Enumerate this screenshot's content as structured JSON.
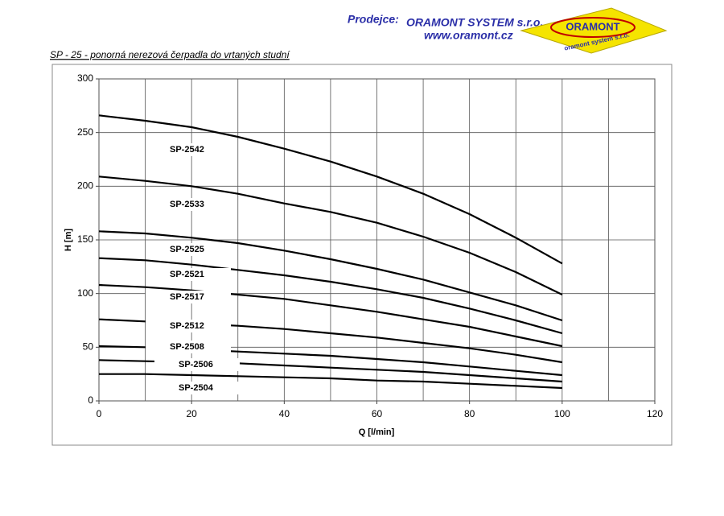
{
  "header": {
    "seller_label": "Prodejce:",
    "company": "ORAMONT SYSTEM s.r.o.",
    "url": "www.oramont.cz",
    "logo_name": "ORAMONT",
    "logo_tagline": "oramont system s.r.o."
  },
  "chart_data": {
    "type": "line",
    "title": "SP - 25 - ponorná nerezová čerpadla do vrtaných studní",
    "x_label": "Q [l/min]",
    "y_label": "H [m]",
    "x": [
      0,
      10,
      20,
      30,
      40,
      50,
      60,
      70,
      80,
      90,
      100
    ],
    "xlim": [
      0,
      120
    ],
    "ylim": [
      0,
      300
    ],
    "xticks": [
      0,
      20,
      40,
      60,
      80,
      100,
      120
    ],
    "x_minor_ticks": [
      10,
      30,
      50,
      70,
      90,
      110
    ],
    "yticks": [
      0,
      50,
      100,
      150,
      200,
      250,
      300
    ],
    "grid": true,
    "series": [
      {
        "name": "SP-2542",
        "color": "#000000",
        "values": [
          266,
          261,
          255,
          246,
          235,
          223,
          209,
          193,
          174,
          152,
          128
        ]
      },
      {
        "name": "SP-2533",
        "color": "#000000",
        "values": [
          209,
          205,
          200,
          193,
          184,
          176,
          166,
          153,
          138,
          120,
          99
        ]
      },
      {
        "name": "SP-2525",
        "color": "#000000",
        "values": [
          158,
          156,
          152,
          147,
          140,
          132,
          123,
          113,
          101,
          89,
          75
        ]
      },
      {
        "name": "SP-2521",
        "color": "#000000",
        "values": [
          133,
          131,
          127,
          122,
          117,
          111,
          104,
          96,
          86,
          75,
          63
        ]
      },
      {
        "name": "SP-2517",
        "color": "#000000",
        "values": [
          108,
          106,
          103,
          99,
          95,
          89,
          83,
          76,
          69,
          60,
          51
        ]
      },
      {
        "name": "SP-2512",
        "color": "#000000",
        "values": [
          76,
          74,
          72,
          70,
          67,
          63,
          59,
          54,
          49,
          43,
          36
        ]
      },
      {
        "name": "SP-2508",
        "color": "#000000",
        "values": [
          51,
          50,
          48,
          46,
          44,
          42,
          39,
          36,
          32,
          28,
          24
        ]
      },
      {
        "name": "SP-2506",
        "color": "#000000",
        "values": [
          38,
          37,
          36,
          35,
          33,
          31,
          29,
          27,
          24,
          21,
          18
        ]
      },
      {
        "name": "SP-2504",
        "color": "#000000",
        "values": [
          25,
          25,
          24,
          23,
          22,
          21,
          19,
          18,
          16,
          14,
          12
        ]
      }
    ]
  }
}
